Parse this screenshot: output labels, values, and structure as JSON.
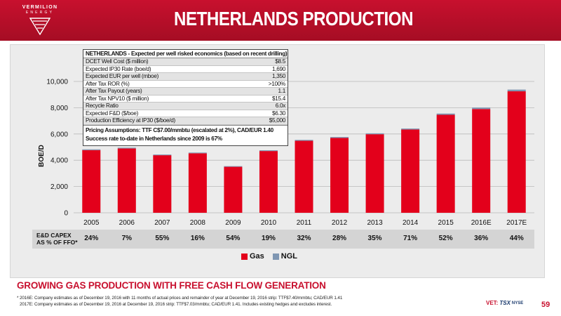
{
  "header": {
    "brand": "VERMILION",
    "brand_sub": "ENERGY",
    "title": "NETHERLANDS PRODUCTION"
  },
  "colors": {
    "brand_red": "#c8102e",
    "gas": "#e3001b",
    "ngl": "#7f96b2"
  },
  "econ_table": {
    "title": "NETHERLANDS - Expected per well risked economics (based on recent drilling)",
    "rows": [
      {
        "label": "DCET Well Cost ($ million)",
        "value": "$8.5"
      },
      {
        "label": "Expected IP30 Rate (boe/d)",
        "value": "1,690"
      },
      {
        "label": "Expected EUR per well (mboe)",
        "value": "1,350"
      },
      {
        "label": "After Tax ROR (%)",
        "value": ">100%"
      },
      {
        "label": "After Tax Payout (years)",
        "value": "1.1"
      },
      {
        "label": "After Tax NPV10 ($ million)",
        "value": "$15.4"
      },
      {
        "label": "Recycle Ratio",
        "value": "6.0x"
      },
      {
        "label": "Expected F&D ($/boe)",
        "value": "$6.30"
      },
      {
        "label": "Production Efficiency at IP30 ($/boe/d)",
        "value": "$5,000"
      }
    ],
    "notes": [
      "Pricing Assumptions: TTF C$7.00/mmbtu (escalated at 2%), CAD/EUR 1.40",
      "Success rate to-date in Netherlands since 2009 is 67%"
    ]
  },
  "chart_data": {
    "type": "bar",
    "stacked": true,
    "categories": [
      "2005",
      "2006",
      "2007",
      "2008",
      "2009",
      "2010",
      "2011",
      "2012",
      "2013",
      "2014",
      "2015",
      "2016E",
      "2017E"
    ],
    "series": [
      {
        "name": "Gas",
        "color": "#e3001b",
        "values": [
          4770,
          4900,
          4380,
          4530,
          3500,
          4700,
          5480,
          5700,
          5980,
          6340,
          7460,
          7900,
          9250
        ]
      },
      {
        "name": "NGL",
        "color": "#7f96b2",
        "values": [
          60,
          60,
          55,
          55,
          50,
          60,
          70,
          70,
          70,
          75,
          95,
          110,
          130
        ]
      }
    ],
    "ylabel": "BOE/D",
    "ylim": [
      0,
      10000
    ],
    "yticks": [
      "0",
      "2,000",
      "4,000",
      "6,000",
      "8,000",
      "10,000"
    ],
    "ytick_values": [
      0,
      2000,
      4000,
      6000,
      8000,
      10000
    ],
    "grid": true,
    "legend_position": "bottom"
  },
  "capex": {
    "label_line1": "E&D CAPEX",
    "label_line2": "AS % OF FFO*",
    "values": [
      "24%",
      "7%",
      "55%",
      "16%",
      "54%",
      "19%",
      "32%",
      "28%",
      "35%",
      "71%",
      "52%",
      "36%",
      "44%"
    ]
  },
  "legend": {
    "gas": "Gas",
    "ngl": "NGL"
  },
  "footer": {
    "title": "GROWING GAS PRODUCTION WITH FREE CASH FLOW GENERATION",
    "footnote_1": "* 2016E: Company estimates as of December 19, 2016 with 11 months of actual prices and remainder of year at December 19, 2016 strip: TTF$7.40/mmbtu; CAD/EUR 1.41",
    "footnote_2": "2017E: Company estimates as of December 19, 2016 at December 19, 2016 strip: TTF$7.03/mmbtu; CAD/EUR 1.41. Includes existing hedges and excludes interest.",
    "ticker_label": "VET:",
    "ticker_tsx": "TSX",
    "ticker_nyse": "NYSE",
    "page_number": "59"
  }
}
